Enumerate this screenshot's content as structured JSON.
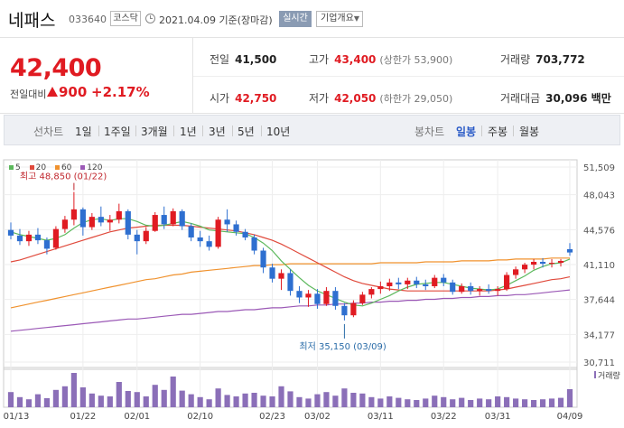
{
  "header": {
    "stock_name": "네패스",
    "stock_code": "033640",
    "market": "코스닥",
    "base_date": "2021.04.09 기준(장마감)",
    "realtime_label": "실시간",
    "overview_label": "기업개요"
  },
  "price": {
    "current": "42,400",
    "compare_label": "전일대비",
    "change": "900",
    "change_rate": "+2.17%",
    "direction": "up",
    "up_color": "#e01b22"
  },
  "stats": {
    "prev_close_label": "전일",
    "prev_close": "41,500",
    "high_label": "고가",
    "high": "43,400",
    "upper_limit_label": "(상한가 53,900)",
    "volume_label": "거래량",
    "volume": "703,772",
    "open_label": "시가",
    "open": "42,750",
    "low_label": "저가",
    "low": "42,050",
    "lower_limit_label": "(하한가 29,050)",
    "amount_label": "거래대금",
    "amount": "30,096 백만"
  },
  "periods": {
    "line_label": "선차트",
    "line_items": [
      "1일",
      "1주일",
      "3개월",
      "1년",
      "3년",
      "5년",
      "10년"
    ],
    "candle_label": "봉차트",
    "candle_items": [
      "일봉",
      "주봉",
      "월봉"
    ],
    "active": "일봉"
  },
  "legend": [
    {
      "label": "5",
      "color": "#5cb85c"
    },
    {
      "label": "20",
      "color": "#e04a3c"
    },
    {
      "label": "60",
      "color": "#f0922e"
    },
    {
      "label": "120",
      "color": "#9b59b6"
    }
  ],
  "chart_data": {
    "type": "candlestick",
    "y_ticks": [
      "51,509",
      "48,043",
      "44,576",
      "41,110",
      "37,644",
      "34,177",
      "30,711"
    ],
    "ylim": [
      30711,
      51509
    ],
    "x_labels": [
      "01/13",
      "01/22",
      "02/01",
      "02/10",
      "02/23",
      "03/02",
      "03/11",
      "03/22",
      "03/31",
      "04/09"
    ],
    "high_annotation": "최고 48,850 (01/22)",
    "low_annotation": "최저 35,150 (03/09)",
    "volume_label": "거래량",
    "colors": {
      "up": "#e01b22",
      "down": "#2e6fd0",
      "volume": "#8b6fb8"
    },
    "candles": [
      {
        "o": 44800,
        "h": 45600,
        "l": 43800,
        "c": 44200
      },
      {
        "o": 44200,
        "h": 44900,
        "l": 43200,
        "c": 43600
      },
      {
        "o": 43600,
        "h": 44700,
        "l": 43100,
        "c": 44300
      },
      {
        "o": 44300,
        "h": 45000,
        "l": 43300,
        "c": 43700
      },
      {
        "o": 43700,
        "h": 44000,
        "l": 42200,
        "c": 42800
      },
      {
        "o": 42900,
        "h": 45200,
        "l": 42700,
        "c": 44900
      },
      {
        "o": 44900,
        "h": 46300,
        "l": 44500,
        "c": 45900
      },
      {
        "o": 45900,
        "h": 48850,
        "l": 45300,
        "c": 47000
      },
      {
        "o": 47000,
        "h": 47200,
        "l": 44200,
        "c": 45100
      },
      {
        "o": 45100,
        "h": 46600,
        "l": 44800,
        "c": 46200
      },
      {
        "o": 46200,
        "h": 47300,
        "l": 45200,
        "c": 45600
      },
      {
        "o": 45600,
        "h": 46400,
        "l": 44700,
        "c": 45900
      },
      {
        "o": 45900,
        "h": 47600,
        "l": 45500,
        "c": 46800
      },
      {
        "o": 46800,
        "h": 47000,
        "l": 43800,
        "c": 44300
      },
      {
        "o": 44300,
        "h": 44800,
        "l": 42200,
        "c": 43600
      },
      {
        "o": 43600,
        "h": 45100,
        "l": 43300,
        "c": 44700
      },
      {
        "o": 44700,
        "h": 46700,
        "l": 44600,
        "c": 46400
      },
      {
        "o": 46400,
        "h": 47300,
        "l": 44900,
        "c": 45400
      },
      {
        "o": 45400,
        "h": 47100,
        "l": 45200,
        "c": 46800
      },
      {
        "o": 46800,
        "h": 47000,
        "l": 44800,
        "c": 45200
      },
      {
        "o": 45200,
        "h": 45500,
        "l": 43600,
        "c": 44000
      },
      {
        "o": 44000,
        "h": 44700,
        "l": 43000,
        "c": 43600
      },
      {
        "o": 43600,
        "h": 44200,
        "l": 42600,
        "c": 43000
      },
      {
        "o": 43000,
        "h": 46200,
        "l": 42800,
        "c": 45900
      },
      {
        "o": 45900,
        "h": 47000,
        "l": 44600,
        "c": 45400
      },
      {
        "o": 45400,
        "h": 45800,
        "l": 44200,
        "c": 44600
      },
      {
        "o": 44600,
        "h": 44900,
        "l": 43700,
        "c": 44000
      },
      {
        "o": 44000,
        "h": 44300,
        "l": 42200,
        "c": 42600
      },
      {
        "o": 42600,
        "h": 42900,
        "l": 40200,
        "c": 40800
      },
      {
        "o": 40800,
        "h": 41200,
        "l": 39200,
        "c": 39600
      },
      {
        "o": 39600,
        "h": 40600,
        "l": 38400,
        "c": 40200
      },
      {
        "o": 40200,
        "h": 40600,
        "l": 37800,
        "c": 38300
      },
      {
        "o": 38300,
        "h": 38800,
        "l": 37000,
        "c": 37600
      },
      {
        "o": 37600,
        "h": 38400,
        "l": 36600,
        "c": 38000
      },
      {
        "o": 38000,
        "h": 38500,
        "l": 36400,
        "c": 36900
      },
      {
        "o": 36900,
        "h": 38700,
        "l": 36700,
        "c": 38300
      },
      {
        "o": 38300,
        "h": 38700,
        "l": 36300,
        "c": 36700
      },
      {
        "o": 36700,
        "h": 37000,
        "l": 35150,
        "c": 35700
      },
      {
        "o": 35700,
        "h": 37300,
        "l": 35500,
        "c": 37000
      },
      {
        "o": 37000,
        "h": 38200,
        "l": 36800,
        "c": 37900
      },
      {
        "o": 37900,
        "h": 38700,
        "l": 37500,
        "c": 38500
      },
      {
        "o": 38500,
        "h": 39300,
        "l": 38000,
        "c": 38800
      },
      {
        "o": 38800,
        "h": 39600,
        "l": 38300,
        "c": 39200
      },
      {
        "o": 39200,
        "h": 39700,
        "l": 38500,
        "c": 39000
      },
      {
        "o": 39000,
        "h": 39700,
        "l": 38500,
        "c": 39400
      },
      {
        "o": 39400,
        "h": 39800,
        "l": 38600,
        "c": 39000
      },
      {
        "o": 39000,
        "h": 39500,
        "l": 38400,
        "c": 38800
      },
      {
        "o": 38800,
        "h": 40000,
        "l": 38600,
        "c": 39700
      },
      {
        "o": 39700,
        "h": 40100,
        "l": 38800,
        "c": 39200
      },
      {
        "o": 39200,
        "h": 39500,
        "l": 37900,
        "c": 38200
      },
      {
        "o": 38200,
        "h": 39100,
        "l": 38000,
        "c": 38800
      },
      {
        "o": 38800,
        "h": 39200,
        "l": 37900,
        "c": 38300
      },
      {
        "o": 38300,
        "h": 38800,
        "l": 37800,
        "c": 38500
      },
      {
        "o": 38500,
        "h": 39000,
        "l": 38000,
        "c": 38300
      },
      {
        "o": 38300,
        "h": 38800,
        "l": 37800,
        "c": 38500
      },
      {
        "o": 38500,
        "h": 40300,
        "l": 38300,
        "c": 40000
      },
      {
        "o": 40000,
        "h": 40900,
        "l": 39600,
        "c": 40600
      },
      {
        "o": 40600,
        "h": 41300,
        "l": 40200,
        "c": 41100
      },
      {
        "o": 41100,
        "h": 41700,
        "l": 40600,
        "c": 41400
      },
      {
        "o": 41400,
        "h": 41800,
        "l": 40800,
        "c": 41200
      },
      {
        "o": 41200,
        "h": 41700,
        "l": 40800,
        "c": 41300
      },
      {
        "o": 41300,
        "h": 41700,
        "l": 40900,
        "c": 41500
      },
      {
        "o": 42750,
        "h": 43400,
        "l": 42050,
        "c": 42400
      }
    ],
    "volumes": [
      0.42,
      0.28,
      0.22,
      0.36,
      0.25,
      0.48,
      0.58,
      0.95,
      0.55,
      0.38,
      0.32,
      0.3,
      0.7,
      0.45,
      0.42,
      0.3,
      0.62,
      0.48,
      0.85,
      0.46,
      0.36,
      0.28,
      0.22,
      0.52,
      0.34,
      0.3,
      0.38,
      0.4,
      0.32,
      0.3,
      0.58,
      0.44,
      0.28,
      0.24,
      0.36,
      0.42,
      0.32,
      0.52,
      0.4,
      0.38,
      0.28,
      0.24,
      0.3,
      0.26,
      0.22,
      0.2,
      0.24,
      0.32,
      0.28,
      0.22,
      0.26,
      0.2,
      0.24,
      0.22,
      0.3,
      0.28,
      0.24,
      0.22,
      0.2,
      0.22,
      0.24,
      0.26,
      0.5
    ],
    "ma5": [
      44600,
      44300,
      44100,
      43900,
      43700,
      43900,
      44300,
      45000,
      45600,
      45900,
      46000,
      45800,
      46000,
      46000,
      45700,
      45300,
      45200,
      45300,
      45500,
      45700,
      45500,
      45200,
      44800,
      44700,
      44600,
      44500,
      44400,
      44000,
      43400,
      42600,
      41500,
      40600,
      39700,
      38900,
      38300,
      37900,
      37500,
      37100,
      36800,
      36700,
      37000,
      37400,
      37800,
      38300,
      38700,
      39000,
      39100,
      39200,
      39200,
      39000,
      38800,
      38600,
      38500,
      38400,
      38500,
      38900,
      39400,
      39900,
      40500,
      40900,
      41200,
      41300,
      41700
    ],
    "ma20": [
      41400,
      41600,
      41900,
      42200,
      42500,
      42800,
      43100,
      43400,
      43700,
      44000,
      44300,
      44600,
      44800,
      45000,
      45100,
      45200,
      45300,
      45300,
      45300,
      45300,
      45200,
      45100,
      45000,
      44900,
      44800,
      44700,
      44500,
      44300,
      44000,
      43700,
      43300,
      42800,
      42300,
      41800,
      41300,
      40800,
      40300,
      39800,
      39400,
      39100,
      38900,
      38700,
      38500,
      38400,
      38300,
      38300,
      38300,
      38300,
      38300,
      38300,
      38300,
      38300,
      38300,
      38300,
      38400,
      38500,
      38700,
      38900,
      39100,
      39300,
      39500,
      39600,
      39800
    ],
    "ma60": [
      36500,
      36700,
      36900,
      37100,
      37300,
      37500,
      37700,
      37900,
      38100,
      38300,
      38500,
      38700,
      38900,
      39100,
      39300,
      39500,
      39600,
      39800,
      40000,
      40100,
      40300,
      40400,
      40500,
      40600,
      40700,
      40800,
      40900,
      41000,
      41000,
      41100,
      41100,
      41200,
      41200,
      41200,
      41200,
      41200,
      41200,
      41200,
      41200,
      41200,
      41200,
      41300,
      41300,
      41300,
      41300,
      41300,
      41400,
      41400,
      41400,
      41400,
      41500,
      41500,
      41500,
      41500,
      41600,
      41600,
      41700,
      41700,
      41700,
      41700,
      41800,
      41800,
      41800
    ],
    "ma120": [
      34000,
      34100,
      34200,
      34300,
      34400,
      34500,
      34600,
      34700,
      34800,
      34900,
      35000,
      35100,
      35200,
      35300,
      35300,
      35400,
      35500,
      35600,
      35700,
      35800,
      35800,
      35900,
      36000,
      36100,
      36100,
      36200,
      36300,
      36300,
      36400,
      36500,
      36500,
      36600,
      36700,
      36700,
      36800,
      36800,
      36900,
      36900,
      37000,
      37000,
      37100,
      37100,
      37200,
      37200,
      37300,
      37300,
      37400,
      37400,
      37500,
      37500,
      37600,
      37600,
      37700,
      37700,
      37800,
      37800,
      37900,
      37900,
      38000,
      38100,
      38200,
      38300,
      38400
    ]
  }
}
